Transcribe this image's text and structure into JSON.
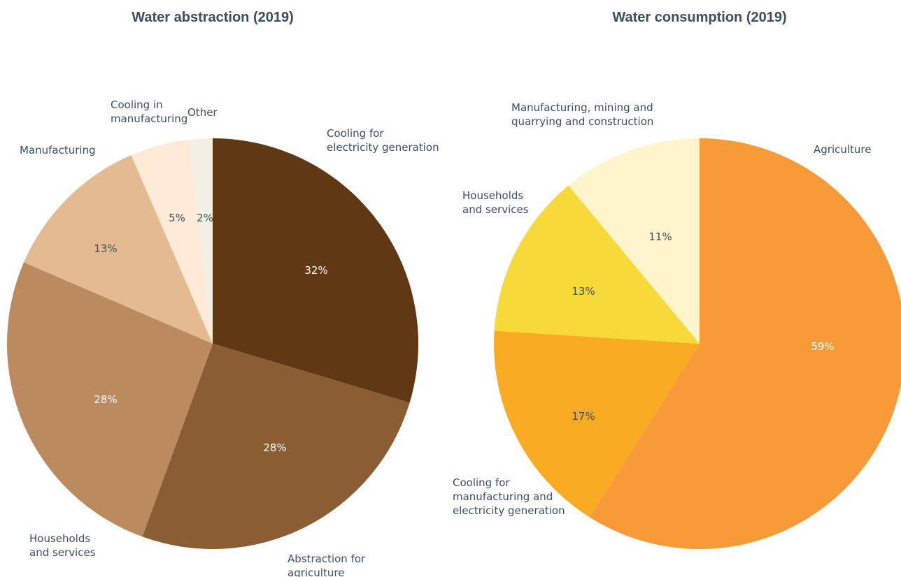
{
  "chart_data": [
    {
      "type": "pie",
      "title": "Water abstraction (2019)",
      "slices": [
        {
          "label": "Cooling for electricity generation",
          "value": 32,
          "value_label": "32%",
          "color": "#603813"
        },
        {
          "label": "Abstraction for agriculture",
          "value": 28,
          "value_label": "28%",
          "color": "#8b5d33"
        },
        {
          "label": "Households and services",
          "value": 28,
          "value_label": "28%",
          "color": "#bc8a5f"
        },
        {
          "label": "Manufacturing",
          "value": 13,
          "value_label": "13%",
          "color": "#e4ba90"
        },
        {
          "label": "Cooling in manufacturing",
          "value": 5,
          "value_label": "5%",
          "color": "#ffead8"
        },
        {
          "label": "Other",
          "value": 2,
          "value_label": "2%",
          "color": "#f2f0e4"
        }
      ]
    },
    {
      "type": "pie",
      "title": "Water consumption (2019)",
      "slices": [
        {
          "label": "Agriculture",
          "value": 59,
          "value_label": "59%",
          "color": "#f89a38"
        },
        {
          "label": "Cooling for manufacturing and electricity generation",
          "value": 17,
          "value_label": "17%",
          "color": "#f9ac23"
        },
        {
          "label": "Households and services",
          "value": 13,
          "value_label": "13%",
          "color": "#f8d93a"
        },
        {
          "label": "Manufacturing, mining and quarrying and construction",
          "value": 11,
          "value_label": "11%",
          "color": "#fff4cc"
        }
      ]
    }
  ]
}
